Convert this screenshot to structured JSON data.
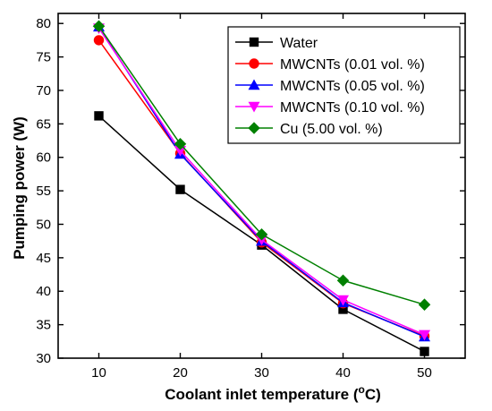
{
  "chart_data": {
    "type": "line",
    "xlabel": "Coolant inlet temperature (",
    "xlabel_sup": "o",
    "xlabel_suffix": "C)",
    "ylabel": "Pumping power (W)",
    "x": [
      10,
      20,
      30,
      40,
      50
    ],
    "xticks": [
      10,
      20,
      30,
      40,
      50
    ],
    "yticks": [
      30,
      35,
      40,
      45,
      50,
      55,
      60,
      65,
      70,
      75,
      80
    ],
    "xlim": [
      5,
      55
    ],
    "ylim": [
      30,
      81.5
    ],
    "grid": false,
    "legend_position": "top-right",
    "series": [
      {
        "name": "Water",
        "values": [
          66.2,
          55.2,
          46.9,
          37.3,
          31.0
        ],
        "color": "#000000",
        "marker": "square"
      },
      {
        "name": "MWCNTs (0.01 vol. %)",
        "values": [
          77.5,
          60.6,
          47.3,
          38.2,
          33.3
        ],
        "color": "#ff0000",
        "marker": "circle"
      },
      {
        "name": "MWCNTs (0.05 vol. %)",
        "values": [
          79.5,
          60.5,
          47.5,
          38.3,
          33.2
        ],
        "color": "#0000ff",
        "marker": "triangle-up"
      },
      {
        "name": "MWCNTs (0.10 vol. %)",
        "values": [
          79.3,
          61.0,
          47.7,
          38.7,
          33.5
        ],
        "color": "#ff00ff",
        "marker": "triangle-down"
      },
      {
        "name": "Cu (5.00 vol. %)",
        "values": [
          79.6,
          62.0,
          48.5,
          41.6,
          38.0
        ],
        "color": "#008000",
        "marker": "diamond"
      }
    ]
  }
}
